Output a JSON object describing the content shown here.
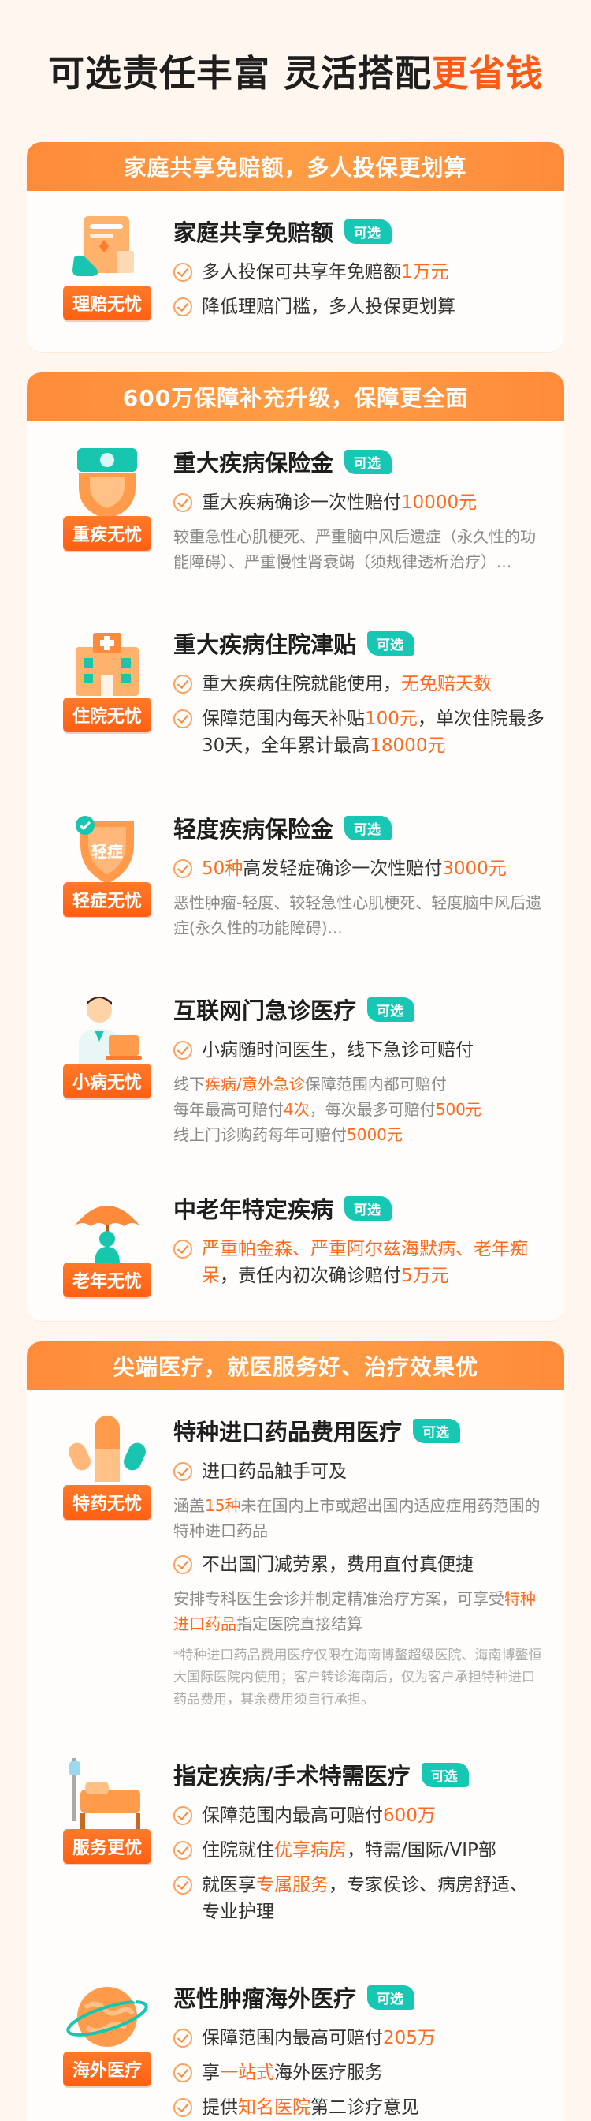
{
  "hero": {
    "title_part1": "可选责任丰富 灵活搭配",
    "title_accent": "更省钱"
  },
  "colors": {
    "accent": "#ff5a14",
    "header_orange": "#ff8b3a",
    "tag_teal": "#17c7b3",
    "check_orange": "#ffa15a"
  },
  "sections": [
    {
      "header": "家庭共享免赔额，多人投保更划算",
      "items": [
        {
          "icon": "claim-document-icon",
          "badge": "理赔无忧",
          "title": "家庭共享免赔额",
          "tag": "可选",
          "b1_pre": "多人投保可共享年免赔额",
          "b1_hl": "1万元",
          "b2": "降低理赔门槛，多人投保更划算"
        }
      ]
    },
    {
      "header": "600万保障补充升级，保障更全面",
      "items": [
        {
          "icon": "cash-shield-icon",
          "badge": "重疾无忧",
          "title": "重大疾病保险金",
          "tag": "可选",
          "b1_pre": "重大疾病确诊一次性赔付",
          "b1_hl": "10000元",
          "desc": "较重急性心肌梗死、严重脑中风后遗症（永久性的功能障碍）、严重慢性肾衰竭（须规律透析治疗）..."
        },
        {
          "icon": "hospital-icon",
          "badge": "住院无忧",
          "title": "重大疾病住院津贴",
          "tag": "可选",
          "b1_pre": "重大疾病住院就能使用，",
          "b1_hl": "无免赔天数",
          "b2_pre": "保障范围内每天补贴",
          "b2_hl1": "100元",
          "b2_mid": "，单次住院最多30天，全年累计最高",
          "b2_hl2": "18000元"
        },
        {
          "icon": "light-illness-shield-icon",
          "icon_text": "轻症",
          "badge": "轻症无忧",
          "title": "轻度疾病保险金",
          "tag": "可选",
          "b1_hl1": "50种",
          "b1_mid": "高发轻症确诊一次性赔付",
          "b1_hl2": "3000元",
          "desc": "恶性肿瘤-轻度、较轻急性心肌梗死、轻度脑中风后遗症(永久性的功能障碍)..."
        },
        {
          "icon": "doctor-laptop-icon",
          "badge": "小病无忧",
          "title": "互联网门急诊医疗",
          "tag": "可选",
          "b1": "小病随时问医生，线下急诊可赔付",
          "d1_pre": "线下",
          "d1_hl": "疾病/意外急诊",
          "d1_post": "保障范围内都可赔付",
          "d2_pre": "每年最高可赔付",
          "d2_hl1": "4次",
          "d2_mid": "，每次最多可赔付",
          "d2_hl2": "500元",
          "d3_pre": "线上门诊购药每年可赔付",
          "d3_hl": "5000元"
        },
        {
          "icon": "elder-umbrella-icon",
          "badge": "老年无忧",
          "title": "中老年特定疾病",
          "tag": "可选",
          "b1_hl": "严重帕金森、严重阿尔兹海默病、老年痴呆",
          "b1_mid": "，责任内初次确诊赔付",
          "b1_hl2": "5万元"
        }
      ]
    },
    {
      "header": "尖端医疗，就医服务好、治疗效果优",
      "items": [
        {
          "icon": "capsule-pill-icon",
          "badge": "特药无忧",
          "title": "特种进口药品费用医疗",
          "tag": "可选",
          "b1": "进口药品触手可及",
          "d1_pre": "涵盖",
          "d1_hl": "15种",
          "d1_post": "未在国内上市或超出国内适应症用药范围的特种进口药品",
          "b2": "不出国门减劳累，费用直付真便捷",
          "d2_pre": "安排专科医生会诊并制定精准治疗方案，可享受",
          "d2_hl": "特种进口药品",
          "d2_post": "指定医院直接结算",
          "note": "*特种进口药品费用医疗仅限在海南博鳌超级医院、海南博鳌恒大国际医院内使用；客户转诊海南后，仅为客户承担特种进口药品费用，其余费用须自行承担。"
        },
        {
          "icon": "hospital-bed-icon",
          "badge": "服务更优",
          "title": "指定疾病/手术特需医疗",
          "tag": "可选",
          "b1_pre": "保障范围内最高可赔付",
          "b1_hl": "600万",
          "b2_pre": "住院就住",
          "b2_hl": "优享病房",
          "b2_post": "，特需/国际/VIP部",
          "b3_pre": "就医享",
          "b3_hl": "专属服务",
          "b3_post": "，专家侯诊、病房舒适、专业护理"
        },
        {
          "icon": "globe-plane-icon",
          "badge": "海外医疗",
          "title": "恶性肿瘤海外医疗",
          "tag": "可选",
          "b1_pre": "保障范围内最高可赔付",
          "b1_hl": "205万",
          "b2_pre": "享",
          "b2_hl": "一站式",
          "b2_post": "海外医疗服务",
          "b3_pre": "提供",
          "b3_hl": "知名医院",
          "b3_post": "第二诊疗意见"
        }
      ]
    }
  ]
}
